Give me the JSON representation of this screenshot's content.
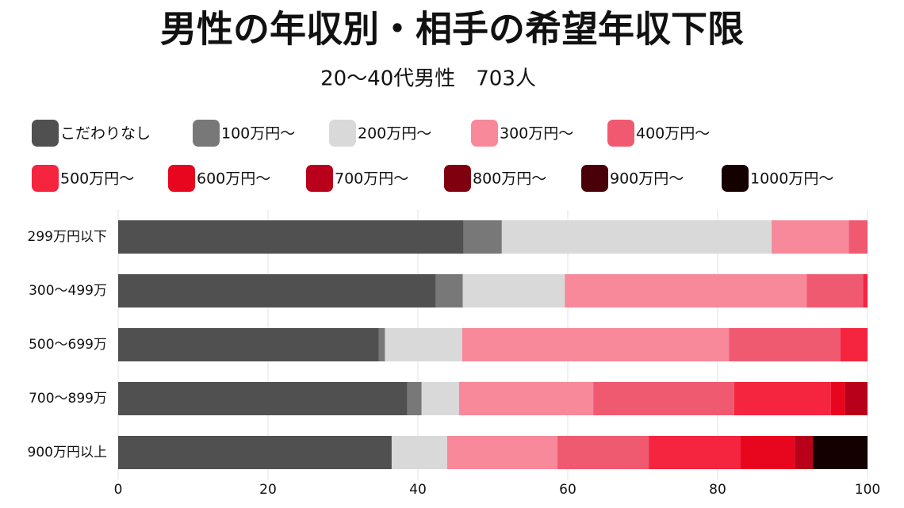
{
  "chart_data": {
    "type": "stacked-bar-horizontal",
    "title": "男性の年収別・相手の希望年収下限",
    "subtitle": "20〜40代男性　703人",
    "categories": [
      "299万円以下",
      "300〜499万",
      "500〜699万",
      "700〜899万",
      "900万円以上"
    ],
    "series": [
      {
        "name": "こだわりなし",
        "color": "#505050",
        "values": [
          46.1,
          42.4,
          34.8,
          38.6,
          36.5
        ]
      },
      {
        "name": "100万円〜",
        "color": "#787878",
        "values": [
          5.1,
          3.6,
          0.8,
          1.9,
          0
        ]
      },
      {
        "name": "200万円〜",
        "color": "#d9d9d9",
        "values": [
          36.0,
          13.6,
          10.3,
          5.0,
          7.4
        ]
      },
      {
        "name": "300万円〜",
        "color": "#f7899a",
        "values": [
          10.3,
          32.3,
          35.6,
          17.9,
          14.7
        ]
      },
      {
        "name": "400万円〜",
        "color": "#f05a70",
        "values": [
          2.5,
          7.5,
          14.9,
          18.8,
          12.2
        ]
      },
      {
        "name": "500万円〜",
        "color": "#f5243f",
        "values": [
          0,
          0.6,
          3.6,
          12.9,
          12.2
        ]
      },
      {
        "name": "600万円〜",
        "color": "#e8061f",
        "values": [
          0,
          0,
          0,
          1.9,
          7.3
        ]
      },
      {
        "name": "700万円〜",
        "color": "#b8001a",
        "values": [
          0,
          0,
          0,
          3.0,
          2.4
        ]
      },
      {
        "name": "800万円〜",
        "color": "#800010",
        "values": [
          0,
          0,
          0,
          0,
          0
        ]
      },
      {
        "name": "900万円〜",
        "color": "#4a0008",
        "values": [
          0,
          0,
          0,
          0,
          0
        ]
      },
      {
        "name": "1000万円〜",
        "color": "#150000",
        "values": [
          0,
          0,
          0,
          0,
          7.3
        ]
      }
    ],
    "xlim": [
      0,
      100
    ],
    "xticks": [
      0,
      20,
      40,
      60,
      80,
      100
    ],
    "grid": true,
    "legend": "top"
  }
}
